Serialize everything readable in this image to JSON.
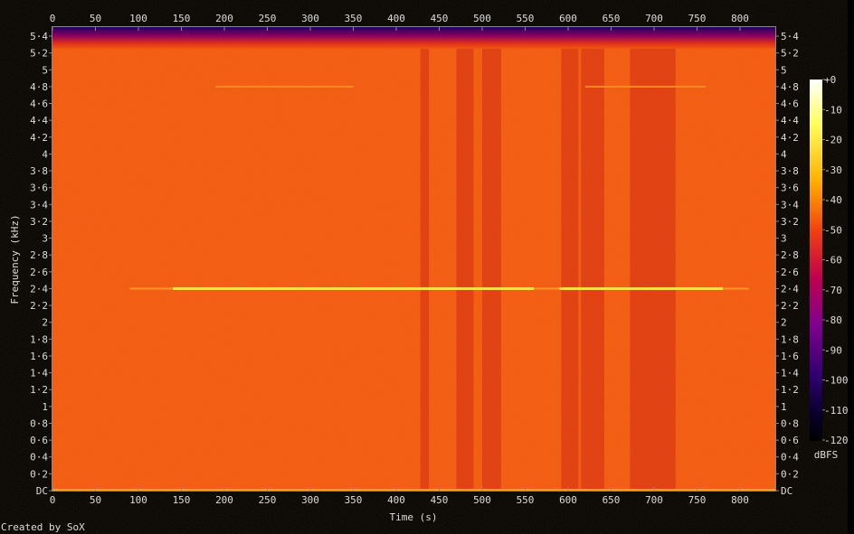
{
  "chart_data": {
    "type": "heatmap",
    "subtype": "spectrogram",
    "xlabel": "Time (s)",
    "ylabel": "Frequency (kHz)",
    "xlim": [
      0,
      840
    ],
    "ylim": [
      0,
      5.5
    ],
    "x_ticks": [
      "0",
      "50",
      "100",
      "150",
      "200",
      "250",
      "300",
      "350",
      "400",
      "450",
      "500",
      "550",
      "600",
      "650",
      "700",
      "750",
      "800"
    ],
    "x_tick_values": [
      0,
      50,
      100,
      150,
      200,
      250,
      300,
      350,
      400,
      450,
      500,
      550,
      600,
      650,
      700,
      750,
      800
    ],
    "y_ticks": [
      "DC",
      "0·2",
      "0·4",
      "0·6",
      "0·8",
      "1",
      "1·2",
      "1·4",
      "1·6",
      "1·8",
      "2",
      "2·2",
      "2·4",
      "2·6",
      "2·8",
      "3",
      "3·2",
      "3·4",
      "3·6",
      "3·8",
      "4",
      "4·2",
      "4·4",
      "4·6",
      "4·8",
      "5",
      "5·2",
      "5·4"
    ],
    "y_tick_values": [
      0,
      0.2,
      0.4,
      0.6,
      0.8,
      1,
      1.2,
      1.4,
      1.6,
      1.8,
      2,
      2.2,
      2.4,
      2.6,
      2.8,
      3,
      3.2,
      3.4,
      3.6,
      3.8,
      4,
      4.2,
      4.4,
      4.6,
      4.8,
      5,
      5.2,
      5.4
    ],
    "colorbar": {
      "label": "dBFS",
      "ticks": [
        "+0",
        "-10",
        "-20",
        "-30",
        "-40",
        "-50",
        "-60",
        "-70",
        "-80",
        "-90",
        "-100",
        "-110",
        "-120"
      ],
      "range": [
        -120,
        0
      ]
    },
    "background_level_dBFS": -45,
    "darker_bands_s": [
      [
        428,
        438
      ],
      [
        470,
        490
      ],
      [
        500,
        522
      ],
      [
        592,
        612
      ],
      [
        615,
        642
      ],
      [
        672,
        725
      ]
    ],
    "tones": [
      {
        "freq_khz": 2.4,
        "start_s": 90,
        "end_s": 810,
        "bright_segments_s": [
          [
            140,
            560
          ],
          [
            590,
            780
          ]
        ]
      },
      {
        "freq_khz": 4.8,
        "start_s": 190,
        "end_s": 350
      },
      {
        "freq_khz": 4.8,
        "start_s": 620,
        "end_s": 760
      }
    ],
    "rolloff_above_khz": 5.25
  },
  "footer": {
    "credit": "Created by SoX"
  },
  "colors": {
    "background": "#000000",
    "base": "#f0580e",
    "dark_band": "#d9300e",
    "tone": "#ffe040",
    "axis": "#888888"
  }
}
